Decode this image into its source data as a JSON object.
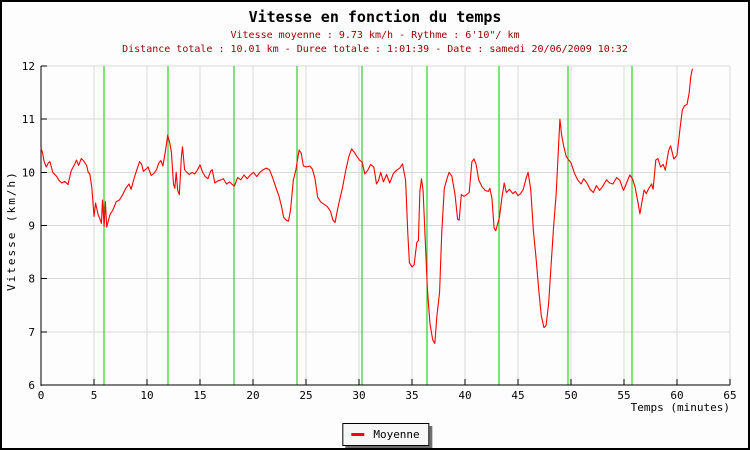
{
  "colors": {
    "background": "#fdfdfd",
    "frame_border": "#000000",
    "axis": "#000000",
    "grid": "#d9d9d9",
    "title": "#000000",
    "subtitle": "#990000",
    "series_line": "#ff0000",
    "km_marker": "#00cc00",
    "legend_bg": "#f7f7f7",
    "legend_shadow": "#6f6f6f"
  },
  "chart_data": {
    "type": "line",
    "title": "Vitesse en fonction du temps",
    "subtitle1": "Vitesse moyenne : 9.73 km/h - Rythme : 6'10\"/ km",
    "subtitle2": "Distance totale : 10.01 km - Duree totale : 1:01:39 - Date : samedi 20/06/2009 10:32",
    "xlabel": "Temps (minutes)",
    "ylabel": "Vitesse (km/h)",
    "xlim": [
      0,
      65
    ],
    "ylim": [
      6,
      12
    ],
    "xticks": [
      0,
      5,
      10,
      15,
      20,
      25,
      30,
      35,
      40,
      45,
      50,
      55,
      60,
      65
    ],
    "yticks": [
      6,
      7,
      8,
      9,
      10,
      11,
      12
    ],
    "grid": true,
    "legend": {
      "position": "bottom-center",
      "entries": [
        {
          "label": "Moyenne",
          "color": "#ff0000"
        }
      ]
    },
    "km_markers": {
      "color": "#00cc00",
      "times": [
        5.95,
        11.98,
        18.2,
        24.15,
        30.28,
        36.4,
        43.2,
        49.7,
        55.75
      ]
    },
    "stats": {
      "vitesse_moyenne": "9.73 km/h",
      "rythme": "6'10\"/ km",
      "distance_totale": "10.01 km",
      "duree_totale": "1:01:39",
      "date": "samedi 20/06/2009 10:32"
    },
    "series": [
      {
        "name": "Moyenne",
        "color": "#ff0000",
        "points": [
          [
            0,
            10.46
          ],
          [
            0.15,
            10.36
          ],
          [
            0.3,
            10.2
          ],
          [
            0.5,
            10.1
          ],
          [
            0.7,
            10.18
          ],
          [
            0.85,
            10.2
          ],
          [
            1.1,
            10.0
          ],
          [
            1.45,
            9.93
          ],
          [
            1.7,
            9.85
          ],
          [
            1.95,
            9.8
          ],
          [
            2.25,
            9.83
          ],
          [
            2.55,
            9.77
          ],
          [
            2.85,
            10.03
          ],
          [
            3.2,
            10.16
          ],
          [
            3.35,
            10.23
          ],
          [
            3.55,
            10.13
          ],
          [
            3.8,
            10.26
          ],
          [
            4.0,
            10.22
          ],
          [
            4.3,
            10.13
          ],
          [
            4.45,
            10.0
          ],
          [
            4.6,
            9.97
          ],
          [
            4.8,
            9.7
          ],
          [
            5.0,
            9.17
          ],
          [
            5.15,
            9.42
          ],
          [
            5.4,
            9.2
          ],
          [
            5.55,
            9.13
          ],
          [
            5.7,
            9.04
          ],
          [
            5.8,
            9.48
          ],
          [
            5.95,
            8.98
          ],
          [
            6.08,
            9.45
          ],
          [
            6.2,
            8.97
          ],
          [
            6.5,
            9.2
          ],
          [
            6.8,
            9.3
          ],
          [
            7.1,
            9.45
          ],
          [
            7.4,
            9.48
          ],
          [
            7.7,
            9.58
          ],
          [
            8.0,
            9.7
          ],
          [
            8.3,
            9.78
          ],
          [
            8.5,
            9.68
          ],
          [
            8.8,
            9.9
          ],
          [
            9.05,
            10.05
          ],
          [
            9.3,
            10.2
          ],
          [
            9.5,
            10.15
          ],
          [
            9.65,
            10.02
          ],
          [
            9.9,
            10.06
          ],
          [
            10.1,
            10.1
          ],
          [
            10.4,
            9.94
          ],
          [
            10.65,
            9.98
          ],
          [
            10.9,
            10.05
          ],
          [
            11.1,
            10.17
          ],
          [
            11.3,
            10.22
          ],
          [
            11.5,
            10.12
          ],
          [
            11.75,
            10.42
          ],
          [
            11.95,
            10.7
          ],
          [
            12.15,
            10.55
          ],
          [
            12.3,
            10.38
          ],
          [
            12.5,
            9.78
          ],
          [
            12.62,
            9.7
          ],
          [
            12.75,
            10.0
          ],
          [
            12.9,
            9.66
          ],
          [
            13.05,
            9.58
          ],
          [
            13.25,
            10.3
          ],
          [
            13.35,
            10.48
          ],
          [
            13.55,
            10.05
          ],
          [
            13.75,
            10.0
          ],
          [
            14.0,
            9.96
          ],
          [
            14.25,
            10.0
          ],
          [
            14.5,
            9.97
          ],
          [
            14.75,
            10.04
          ],
          [
            15.0,
            10.14
          ],
          [
            15.25,
            10.0
          ],
          [
            15.5,
            9.92
          ],
          [
            15.75,
            9.88
          ],
          [
            16.0,
            10.02
          ],
          [
            16.15,
            10.05
          ],
          [
            16.4,
            9.8
          ],
          [
            16.7,
            9.84
          ],
          [
            17.0,
            9.86
          ],
          [
            17.2,
            9.88
          ],
          [
            17.5,
            9.78
          ],
          [
            17.8,
            9.82
          ],
          [
            18.05,
            9.77
          ],
          [
            18.25,
            9.74
          ],
          [
            18.55,
            9.9
          ],
          [
            18.85,
            9.86
          ],
          [
            19.15,
            9.95
          ],
          [
            19.45,
            9.88
          ],
          [
            19.75,
            9.95
          ],
          [
            20.05,
            10.0
          ],
          [
            20.35,
            9.92
          ],
          [
            20.65,
            10.0
          ],
          [
            20.95,
            10.05
          ],
          [
            21.25,
            10.08
          ],
          [
            21.55,
            10.05
          ],
          [
            21.85,
            9.9
          ],
          [
            22.15,
            9.72
          ],
          [
            22.45,
            9.55
          ],
          [
            22.7,
            9.35
          ],
          [
            22.9,
            9.15
          ],
          [
            23.15,
            9.1
          ],
          [
            23.35,
            9.08
          ],
          [
            23.55,
            9.3
          ],
          [
            23.8,
            9.85
          ],
          [
            24.05,
            10.05
          ],
          [
            24.35,
            10.42
          ],
          [
            24.55,
            10.36
          ],
          [
            24.75,
            10.12
          ],
          [
            25.05,
            10.1
          ],
          [
            25.35,
            10.12
          ],
          [
            25.6,
            10.06
          ],
          [
            25.85,
            9.88
          ],
          [
            26.1,
            9.53
          ],
          [
            26.4,
            9.44
          ],
          [
            26.7,
            9.4
          ],
          [
            27.0,
            9.36
          ],
          [
            27.3,
            9.27
          ],
          [
            27.55,
            9.1
          ],
          [
            27.75,
            9.06
          ],
          [
            27.95,
            9.28
          ],
          [
            28.15,
            9.46
          ],
          [
            28.45,
            9.72
          ],
          [
            28.75,
            10.04
          ],
          [
            29.05,
            10.3
          ],
          [
            29.3,
            10.44
          ],
          [
            29.55,
            10.38
          ],
          [
            29.8,
            10.3
          ],
          [
            30.05,
            10.23
          ],
          [
            30.3,
            10.19
          ],
          [
            30.55,
            9.97
          ],
          [
            30.8,
            10.03
          ],
          [
            31.1,
            10.15
          ],
          [
            31.4,
            10.1
          ],
          [
            31.65,
            9.78
          ],
          [
            31.85,
            9.85
          ],
          [
            32.05,
            10.0
          ],
          [
            32.3,
            9.82
          ],
          [
            32.6,
            9.96
          ],
          [
            32.9,
            9.8
          ],
          [
            33.25,
            9.98
          ],
          [
            33.55,
            10.04
          ],
          [
            33.85,
            10.08
          ],
          [
            34.1,
            10.16
          ],
          [
            34.4,
            9.85
          ],
          [
            34.6,
            8.85
          ],
          [
            34.75,
            8.3
          ],
          [
            35.0,
            8.22
          ],
          [
            35.2,
            8.26
          ],
          [
            35.45,
            8.68
          ],
          [
            35.6,
            8.72
          ],
          [
            35.75,
            9.65
          ],
          [
            35.9,
            9.88
          ],
          [
            36.05,
            9.65
          ],
          [
            36.25,
            8.7
          ],
          [
            36.45,
            7.8
          ],
          [
            36.7,
            7.15
          ],
          [
            36.95,
            6.85
          ],
          [
            37.15,
            6.78
          ],
          [
            37.35,
            7.3
          ],
          [
            37.6,
            7.75
          ],
          [
            37.8,
            8.85
          ],
          [
            38.05,
            9.7
          ],
          [
            38.3,
            9.88
          ],
          [
            38.5,
            10.0
          ],
          [
            38.75,
            9.93
          ],
          [
            39.05,
            9.6
          ],
          [
            39.3,
            9.12
          ],
          [
            39.45,
            9.1
          ],
          [
            39.65,
            9.58
          ],
          [
            39.9,
            9.55
          ],
          [
            40.15,
            9.58
          ],
          [
            40.4,
            9.62
          ],
          [
            40.65,
            10.2
          ],
          [
            40.85,
            10.25
          ],
          [
            41.05,
            10.15
          ],
          [
            41.3,
            9.85
          ],
          [
            41.6,
            9.73
          ],
          [
            41.9,
            9.66
          ],
          [
            42.2,
            9.64
          ],
          [
            42.35,
            9.7
          ],
          [
            42.55,
            9.5
          ],
          [
            42.75,
            8.95
          ],
          [
            42.9,
            8.9
          ],
          [
            43.1,
            9.05
          ],
          [
            43.25,
            9.15
          ],
          [
            43.5,
            9.55
          ],
          [
            43.7,
            9.8
          ],
          [
            43.9,
            9.62
          ],
          [
            44.2,
            9.68
          ],
          [
            44.5,
            9.6
          ],
          [
            44.75,
            9.64
          ],
          [
            45.0,
            9.56
          ],
          [
            45.25,
            9.6
          ],
          [
            45.5,
            9.68
          ],
          [
            45.75,
            9.88
          ],
          [
            45.95,
            10.0
          ],
          [
            46.2,
            9.68
          ],
          [
            46.45,
            8.9
          ],
          [
            46.7,
            8.4
          ],
          [
            46.95,
            7.8
          ],
          [
            47.2,
            7.3
          ],
          [
            47.45,
            7.08
          ],
          [
            47.65,
            7.12
          ],
          [
            47.9,
            7.55
          ],
          [
            48.1,
            8.2
          ],
          [
            48.35,
            8.95
          ],
          [
            48.6,
            9.6
          ],
          [
            48.8,
            10.4
          ],
          [
            48.95,
            11.0
          ],
          [
            49.1,
            10.72
          ],
          [
            49.3,
            10.5
          ],
          [
            49.55,
            10.3
          ],
          [
            49.75,
            10.24
          ],
          [
            50.0,
            10.18
          ],
          [
            50.35,
            9.97
          ],
          [
            50.65,
            9.85
          ],
          [
            50.95,
            9.78
          ],
          [
            51.2,
            9.88
          ],
          [
            51.5,
            9.8
          ],
          [
            51.8,
            9.68
          ],
          [
            52.1,
            9.62
          ],
          [
            52.4,
            9.75
          ],
          [
            52.7,
            9.66
          ],
          [
            53.0,
            9.74
          ],
          [
            53.35,
            9.86
          ],
          [
            53.65,
            9.8
          ],
          [
            53.95,
            9.78
          ],
          [
            54.3,
            9.9
          ],
          [
            54.6,
            9.85
          ],
          [
            54.95,
            9.66
          ],
          [
            55.25,
            9.8
          ],
          [
            55.55,
            9.95
          ],
          [
            55.8,
            9.88
          ],
          [
            56.05,
            9.72
          ],
          [
            56.3,
            9.45
          ],
          [
            56.5,
            9.22
          ],
          [
            56.9,
            9.67
          ],
          [
            57.1,
            9.6
          ],
          [
            57.35,
            9.7
          ],
          [
            57.6,
            9.78
          ],
          [
            57.75,
            9.68
          ],
          [
            58.0,
            10.23
          ],
          [
            58.2,
            10.26
          ],
          [
            58.45,
            10.1
          ],
          [
            58.7,
            10.15
          ],
          [
            58.9,
            10.04
          ],
          [
            59.2,
            10.4
          ],
          [
            59.4,
            10.5
          ],
          [
            59.7,
            10.25
          ],
          [
            60.0,
            10.32
          ],
          [
            60.3,
            10.85
          ],
          [
            60.5,
            11.17
          ],
          [
            60.7,
            11.25
          ],
          [
            60.95,
            11.28
          ],
          [
            61.15,
            11.5
          ],
          [
            61.3,
            11.8
          ],
          [
            61.45,
            11.95
          ]
        ]
      }
    ]
  }
}
